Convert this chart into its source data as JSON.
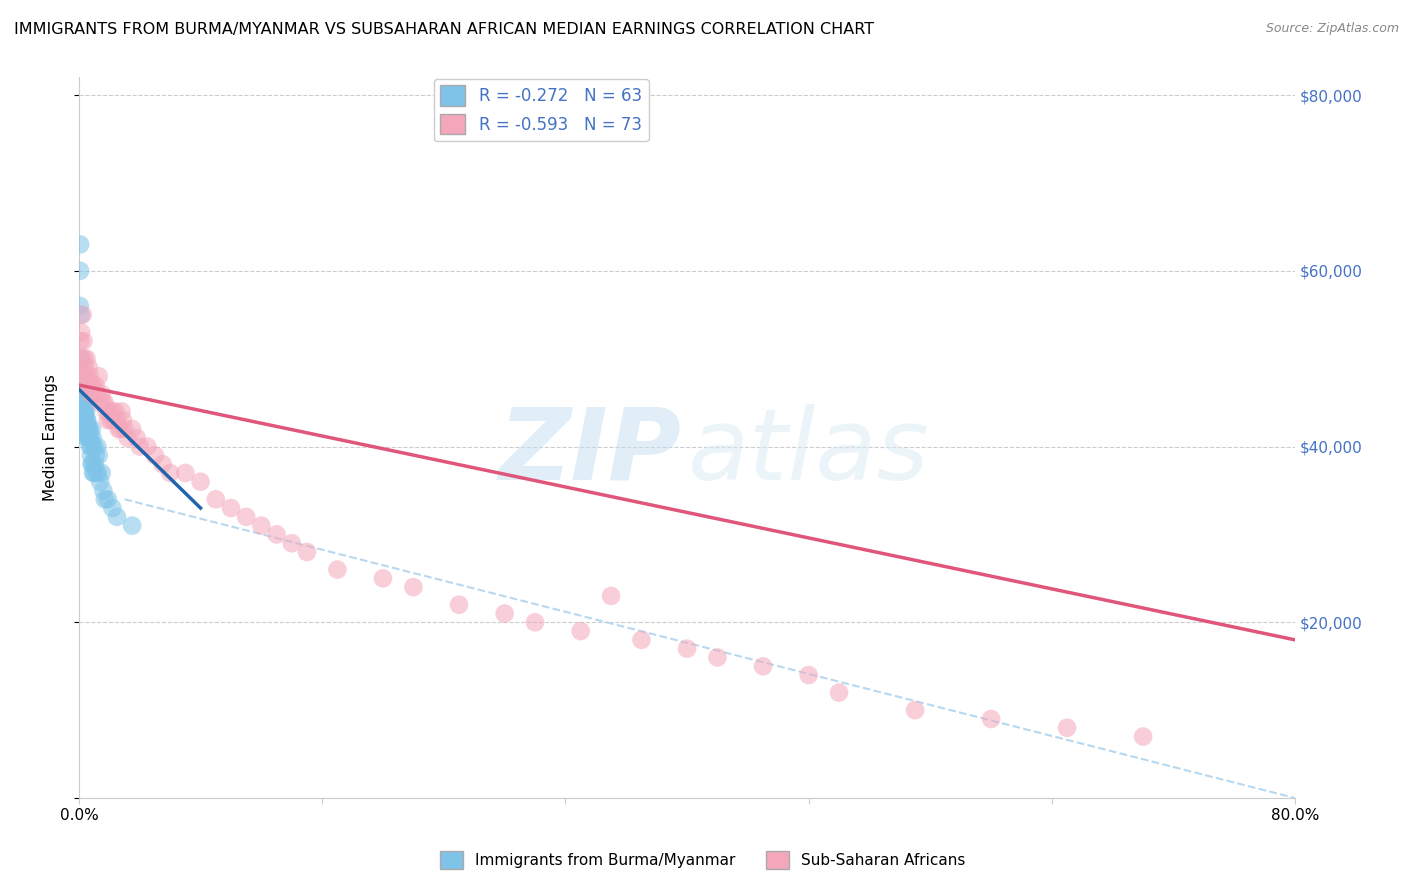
{
  "title": "IMMIGRANTS FROM BURMA/MYANMAR VS SUBSAHARAN AFRICAN MEDIAN EARNINGS CORRELATION CHART",
  "source": "Source: ZipAtlas.com",
  "ylabel": "Median Earnings",
  "legend_blue_r": "R = -0.272",
  "legend_blue_n": "N = 63",
  "legend_pink_r": "R = -0.593",
  "legend_pink_n": "N = 73",
  "watermark_zip": "ZIP",
  "watermark_atlas": "atlas",
  "scatter_blue_x": [
    0.05,
    0.08,
    0.12,
    0.18,
    0.22,
    0.25,
    0.28,
    0.3,
    0.33,
    0.36,
    0.4,
    0.44,
    0.48,
    0.5,
    0.54,
    0.58,
    0.62,
    0.66,
    0.7,
    0.75,
    0.8,
    0.85,
    0.9,
    0.95,
    1.0,
    1.1,
    1.2,
    1.3,
    1.5,
    1.7,
    0.06,
    0.1,
    0.15,
    0.2,
    0.24,
    0.27,
    0.31,
    0.35,
    0.38,
    0.42,
    0.46,
    0.52,
    0.56,
    0.6,
    0.65,
    0.72,
    0.78,
    0.83,
    0.88,
    0.93,
    0.98,
    1.05,
    1.15,
    1.25,
    1.4,
    1.6,
    1.9,
    2.2,
    2.5,
    3.5,
    0.07,
    0.13,
    0.19
  ],
  "scatter_blue_y": [
    47000,
    63000,
    46000,
    44000,
    45000,
    46000,
    44000,
    45000,
    44000,
    46000,
    44000,
    43000,
    44000,
    42000,
    43000,
    42000,
    41000,
    42000,
    42000,
    41000,
    40000,
    42000,
    41000,
    40000,
    40000,
    39000,
    40000,
    39000,
    37000,
    34000,
    56000,
    50000,
    47000,
    44000,
    43000,
    45000,
    43000,
    42000,
    44000,
    42000,
    41000,
    43000,
    42000,
    41000,
    41000,
    40000,
    39000,
    38000,
    38000,
    37000,
    37000,
    38000,
    37000,
    37000,
    36000,
    35000,
    34000,
    33000,
    32000,
    31000,
    60000,
    55000,
    48000
  ],
  "scatter_pink_x": [
    0.05,
    0.1,
    0.15,
    0.2,
    0.25,
    0.3,
    0.35,
    0.4,
    0.45,
    0.5,
    0.55,
    0.6,
    0.65,
    0.7,
    0.75,
    0.8,
    0.9,
    1.0,
    1.1,
    1.2,
    1.3,
    1.4,
    1.5,
    1.6,
    1.7,
    1.8,
    1.9,
    2.0,
    2.1,
    2.2,
    2.3,
    2.4,
    2.5,
    2.6,
    2.7,
    2.8,
    2.9,
    3.0,
    3.2,
    3.5,
    3.8,
    4.0,
    4.5,
    5.0,
    5.5,
    6.0,
    7.0,
    8.0,
    9.0,
    10.0,
    11.0,
    12.0,
    13.0,
    14.0,
    15.0,
    17.0,
    20.0,
    22.0,
    25.0,
    28.0,
    30.0,
    33.0,
    35.0,
    37.0,
    40.0,
    42.0,
    45.0,
    48.0,
    50.0,
    55.0,
    60.0,
    65.0,
    70.0
  ],
  "scatter_pink_y": [
    47000,
    52000,
    53000,
    50000,
    55000,
    52000,
    50000,
    49000,
    48000,
    50000,
    48000,
    47000,
    49000,
    48000,
    47000,
    46000,
    47000,
    46000,
    47000,
    46000,
    48000,
    45000,
    46000,
    45000,
    45000,
    44000,
    43000,
    44000,
    43000,
    44000,
    43000,
    44000,
    43000,
    42000,
    42000,
    44000,
    43000,
    42000,
    41000,
    42000,
    41000,
    40000,
    40000,
    39000,
    38000,
    37000,
    37000,
    36000,
    34000,
    33000,
    32000,
    31000,
    30000,
    29000,
    28000,
    26000,
    25000,
    24000,
    22000,
    21000,
    20000,
    19000,
    23000,
    18000,
    17000,
    16000,
    15000,
    14000,
    12000,
    10000,
    9000,
    8000,
    7000
  ],
  "blue_line_x": [
    0.0,
    8.0
  ],
  "blue_line_y": [
    46500,
    33000
  ],
  "pink_line_x": [
    0.0,
    80.0
  ],
  "pink_line_y": [
    47000,
    18000
  ],
  "dashed_line_x": [
    3.0,
    80.0
  ],
  "dashed_line_y": [
    34000,
    0
  ],
  "xlim": [
    0.0,
    80.0
  ],
  "ylim": [
    0,
    82000
  ],
  "blue_color": "#7fc4e8",
  "pink_color": "#f4a7bb",
  "blue_line_color": "#2166ac",
  "pink_line_color": "#e0567a",
  "dashed_color": "#b8d8f0",
  "background_color": "#ffffff",
  "title_fontsize": 11.5,
  "source_fontsize": 9,
  "right_label_color": "#4472c4",
  "legend_text_color": "#4472c4"
}
